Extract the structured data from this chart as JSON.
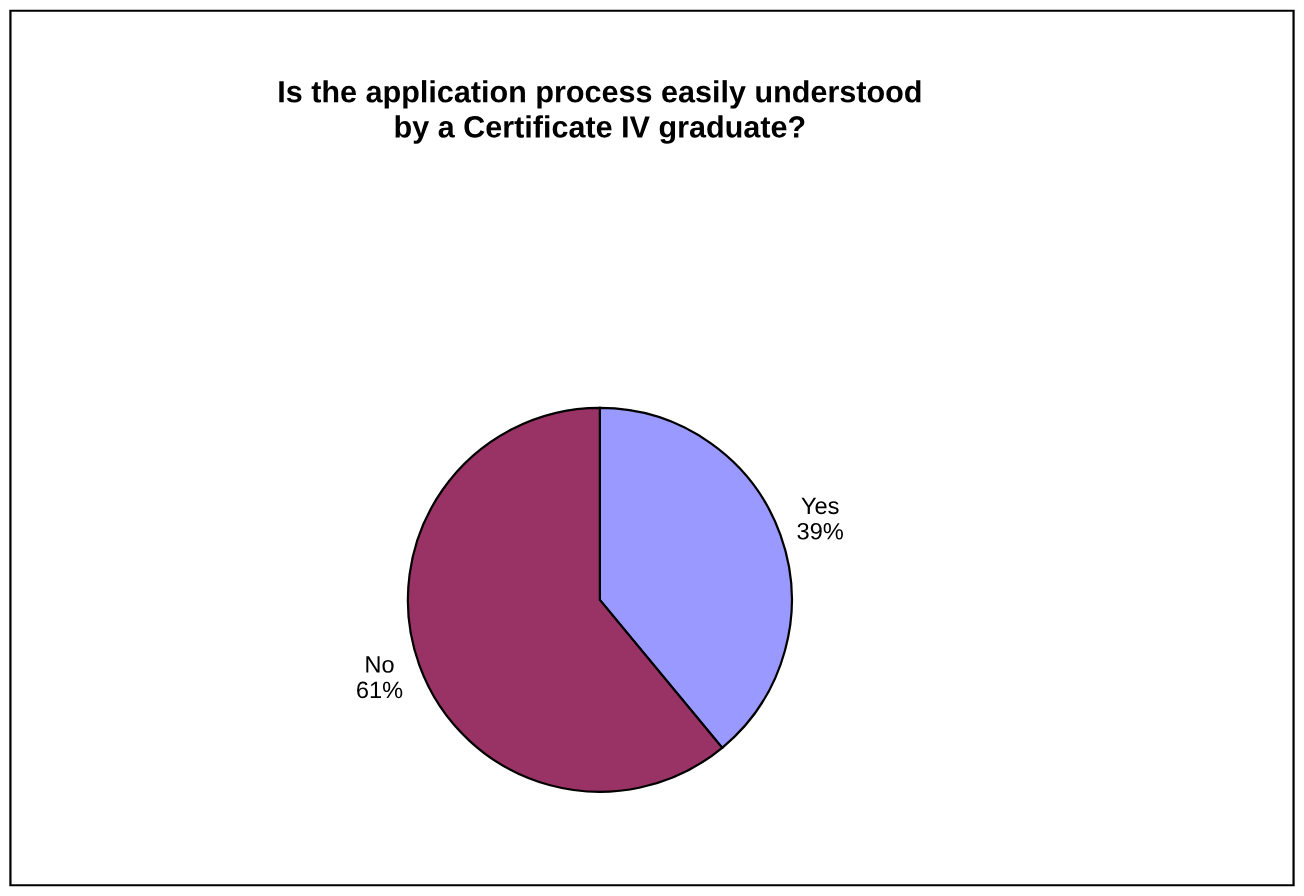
{
  "chart_data": {
    "type": "pie",
    "title": "Is the application process easily understood\nby a Certificate IV graduate?",
    "categories": [
      "Yes",
      "No"
    ],
    "values": [
      39,
      61
    ],
    "colors": [
      "#9999ff",
      "#993366"
    ],
    "value_labels": [
      "39%",
      "61%"
    ]
  }
}
